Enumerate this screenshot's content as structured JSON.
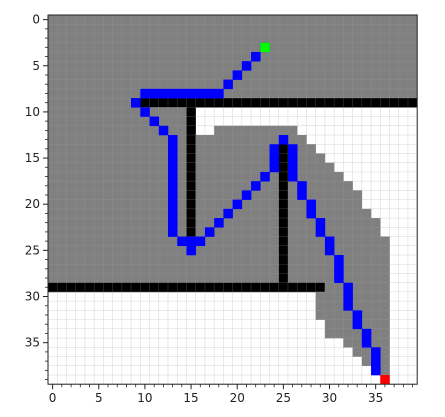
{
  "chart_data": {
    "type": "heatmap",
    "title": "",
    "xlabel": "",
    "ylabel": "",
    "grid_size": [
      40,
      40
    ],
    "xlim": [
      -0.5,
      39.5
    ],
    "ylim": [
      39.5,
      -0.5
    ],
    "y_inverted": true,
    "grid": true,
    "x_ticks": [
      0,
      5,
      10,
      15,
      20,
      25,
      30,
      35
    ],
    "y_ticks": [
      0,
      5,
      10,
      15,
      20,
      25,
      30,
      35
    ],
    "colors": {
      "free": "#ffffff",
      "explored": "#808080",
      "wall": "#000000",
      "path": "#0000ff",
      "start": "#00ff00",
      "goal": "#ff0000",
      "gridline": "#9a9a9a"
    },
    "explored_rows": [
      {
        "row": 0,
        "ranges": [
          [
            0,
            39
          ]
        ]
      },
      {
        "row": 1,
        "ranges": [
          [
            0,
            39
          ]
        ]
      },
      {
        "row": 2,
        "ranges": [
          [
            0,
            39
          ]
        ]
      },
      {
        "row": 3,
        "ranges": [
          [
            0,
            39
          ]
        ]
      },
      {
        "row": 4,
        "ranges": [
          [
            0,
            39
          ]
        ]
      },
      {
        "row": 5,
        "ranges": [
          [
            0,
            39
          ]
        ]
      },
      {
        "row": 6,
        "ranges": [
          [
            0,
            39
          ]
        ]
      },
      {
        "row": 7,
        "ranges": [
          [
            0,
            39
          ]
        ]
      },
      {
        "row": 8,
        "ranges": [
          [
            0,
            39
          ]
        ]
      },
      {
        "row": 9,
        "ranges": [
          [
            0,
            15
          ]
        ]
      },
      {
        "row": 10,
        "ranges": [
          [
            0,
            15
          ]
        ]
      },
      {
        "row": 11,
        "ranges": [
          [
            0,
            15
          ]
        ]
      },
      {
        "row": 12,
        "ranges": [
          [
            0,
            26
          ]
        ]
      },
      {
        "row": 13,
        "ranges": [
          [
            0,
            27
          ]
        ]
      },
      {
        "row": 14,
        "ranges": [
          [
            0,
            28
          ]
        ]
      },
      {
        "row": 15,
        "ranges": [
          [
            0,
            29
          ]
        ]
      },
      {
        "row": 16,
        "ranges": [
          [
            0,
            30
          ]
        ]
      },
      {
        "row": 17,
        "ranges": [
          [
            0,
            31
          ]
        ]
      },
      {
        "row": 18,
        "ranges": [
          [
            0,
            32
          ]
        ]
      },
      {
        "row": 19,
        "ranges": [
          [
            0,
            33
          ]
        ]
      },
      {
        "row": 20,
        "ranges": [
          [
            0,
            33
          ]
        ]
      },
      {
        "row": 21,
        "ranges": [
          [
            0,
            34
          ]
        ]
      },
      {
        "row": 22,
        "ranges": [
          [
            0,
            35
          ]
        ]
      },
      {
        "row": 23,
        "ranges": [
          [
            0,
            35
          ]
        ]
      },
      {
        "row": 24,
        "ranges": [
          [
            0,
            36
          ]
        ]
      },
      {
        "row": 25,
        "ranges": [
          [
            0,
            36
          ]
        ]
      },
      {
        "row": 26,
        "ranges": [
          [
            0,
            36
          ]
        ]
      },
      {
        "row": 27,
        "ranges": [
          [
            0,
            36
          ]
        ]
      },
      {
        "row": 28,
        "ranges": [
          [
            0,
            36
          ]
        ]
      },
      {
        "row": 29,
        "ranges": [
          [
            0,
            36
          ]
        ]
      },
      {
        "row": 30,
        "ranges": [
          [
            29,
            36
          ]
        ]
      },
      {
        "row": 31,
        "ranges": [
          [
            29,
            36
          ]
        ]
      },
      {
        "row": 32,
        "ranges": [
          [
            29,
            36
          ]
        ]
      },
      {
        "row": 33,
        "ranges": [
          [
            30,
            36
          ]
        ]
      },
      {
        "row": 34,
        "ranges": [
          [
            30,
            36
          ]
        ]
      },
      {
        "row": 35,
        "ranges": [
          [
            32,
            36
          ]
        ]
      },
      {
        "row": 36,
        "ranges": [
          [
            33,
            36
          ]
        ]
      },
      {
        "row": 37,
        "ranges": [
          [
            34,
            36
          ]
        ]
      },
      {
        "row": 38,
        "ranges": [
          [
            35,
            36
          ]
        ]
      }
    ],
    "free_overrides": [
      {
        "row": 12,
        "ranges": [
          [
            16,
            17
          ]
        ]
      }
    ],
    "walls": [
      {
        "orientation": "h",
        "row": 9,
        "from": 9,
        "to": 39
      },
      {
        "orientation": "v",
        "col": 15,
        "from": 9,
        "to": 24
      },
      {
        "orientation": "v",
        "col": 25,
        "from": 14,
        "to": 29
      },
      {
        "orientation": "h",
        "row": 29,
        "from": 0,
        "to": 29
      }
    ],
    "path": [
      [
        23,
        3
      ],
      [
        22,
        4
      ],
      [
        21,
        5
      ],
      [
        20,
        6
      ],
      [
        19,
        7
      ],
      [
        18,
        8
      ],
      [
        17,
        8
      ],
      [
        16,
        8
      ],
      [
        15,
        8
      ],
      [
        14,
        8
      ],
      [
        13,
        8
      ],
      [
        12,
        8
      ],
      [
        11,
        8
      ],
      [
        10,
        8
      ],
      [
        9,
        9
      ],
      [
        10,
        10
      ],
      [
        11,
        11
      ],
      [
        12,
        12
      ],
      [
        13,
        13
      ],
      [
        13,
        14
      ],
      [
        13,
        15
      ],
      [
        13,
        16
      ],
      [
        13,
        17
      ],
      [
        13,
        18
      ],
      [
        13,
        19
      ],
      [
        13,
        20
      ],
      [
        13,
        21
      ],
      [
        13,
        22
      ],
      [
        13,
        23
      ],
      [
        14,
        24
      ],
      [
        15,
        24
      ],
      [
        15,
        25
      ],
      [
        16,
        24
      ],
      [
        17,
        23
      ],
      [
        18,
        22
      ],
      [
        19,
        21
      ],
      [
        20,
        20
      ],
      [
        21,
        19
      ],
      [
        22,
        18
      ],
      [
        23,
        17
      ],
      [
        24,
        16
      ],
      [
        24,
        15
      ],
      [
        24,
        14
      ],
      [
        25,
        13
      ],
      [
        26,
        14
      ],
      [
        26,
        15
      ],
      [
        26,
        16
      ],
      [
        26,
        17
      ],
      [
        27,
        18
      ],
      [
        27,
        19
      ],
      [
        28,
        20
      ],
      [
        28,
        21
      ],
      [
        29,
        22
      ],
      [
        29,
        23
      ],
      [
        30,
        24
      ],
      [
        30,
        25
      ],
      [
        31,
        26
      ],
      [
        31,
        27
      ],
      [
        31,
        28
      ],
      [
        32,
        29
      ],
      [
        32,
        30
      ],
      [
        32,
        31
      ],
      [
        33,
        32
      ],
      [
        33,
        33
      ],
      [
        34,
        34
      ],
      [
        34,
        35
      ],
      [
        35,
        36
      ],
      [
        35,
        37
      ],
      [
        35,
        38
      ]
    ],
    "start": [
      23,
      3
    ],
    "goal": [
      36,
      39
    ]
  }
}
